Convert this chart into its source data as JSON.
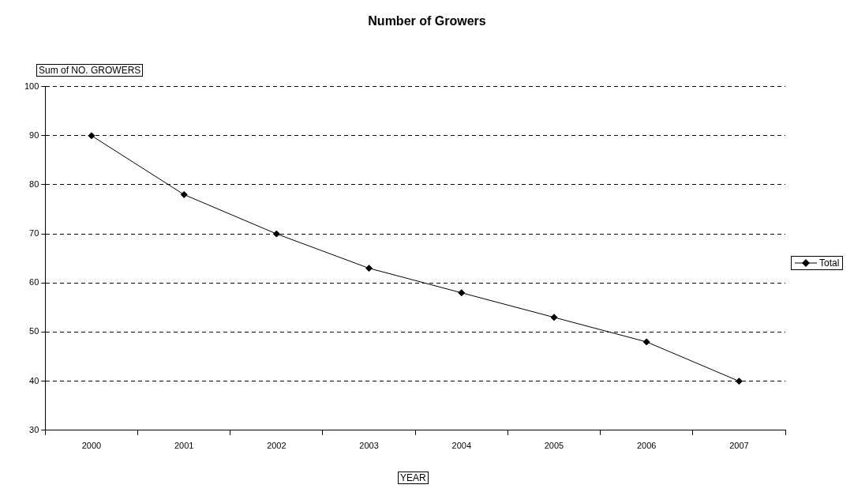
{
  "chart_data": {
    "type": "line",
    "title": "Number of Growers",
    "xlabel": "YEAR",
    "ylabel": "Sum of NO. GROWERS",
    "categories": [
      "2000",
      "2001",
      "2002",
      "2003",
      "2004",
      "2005",
      "2006",
      "2007"
    ],
    "series": [
      {
        "name": "Total",
        "color": "#000000",
        "values": [
          90,
          78,
          70,
          63,
          58,
          53,
          48,
          40
        ]
      }
    ],
    "ylim": [
      30,
      100
    ],
    "yticks": [
      30,
      40,
      50,
      60,
      70,
      80,
      90,
      100
    ],
    "grid": "y",
    "legend": "right",
    "marker": "diamond"
  }
}
